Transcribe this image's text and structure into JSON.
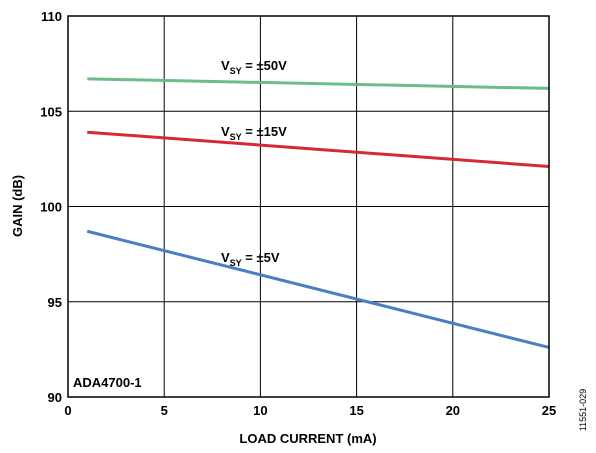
{
  "chart_data": {
    "type": "line",
    "xlabel": "LOAD CURRENT (mA)",
    "ylabel": "GAIN (dB)",
    "xlim": [
      0,
      25
    ],
    "ylim": [
      90,
      110
    ],
    "x_ticks": [
      "0",
      "5",
      "10",
      "15",
      "20",
      "25"
    ],
    "y_ticks": [
      "90",
      "95",
      "100",
      "105",
      "110"
    ],
    "grid": true,
    "annotation": "ADA4700-1",
    "figure_id": "11551-029",
    "series": [
      {
        "label_main": "V",
        "label_sub": "SY",
        "label_rest": " = ±50V",
        "color": "#6dba8a",
        "x": [
          1,
          25
        ],
        "y": [
          106.7,
          106.2
        ]
      },
      {
        "label_main": "V",
        "label_sub": "SY",
        "label_rest": " = ±15V",
        "color": "#d42a36",
        "x": [
          1,
          25
        ],
        "y": [
          103.9,
          102.1
        ]
      },
      {
        "label_main": "V",
        "label_sub": "SY",
        "label_rest": " = ±5V",
        "color": "#4a7fbf",
        "x": [
          1,
          25
        ],
        "y": [
          98.7,
          92.6
        ]
      }
    ]
  }
}
